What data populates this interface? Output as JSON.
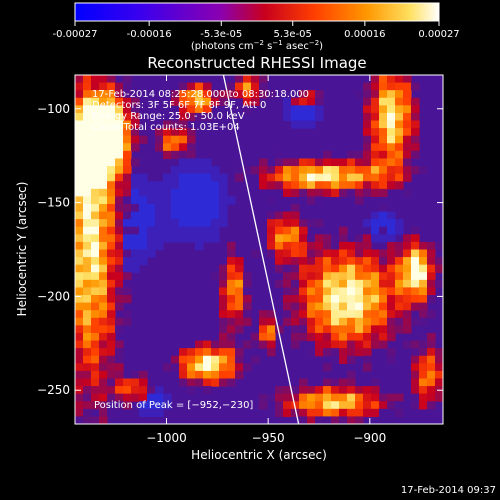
{
  "colorbar": {
    "ticks": [
      "-0.00027",
      "-0.00016",
      "-5.3e-05",
      "5.3e-05",
      "0.00016",
      "0.00027"
    ],
    "tick_values": [
      -0.00027,
      -0.00016,
      -5.3e-05,
      5.3e-05,
      0.00016,
      0.00027
    ],
    "range": [
      -0.00027,
      0.00027
    ],
    "units_prefix": "(photons cm",
    "units_exp1": "−2",
    "units_mid": " s",
    "units_exp2": "−1",
    "units_mid2": " asec",
    "units_exp3": "−2",
    "units_suffix": ")",
    "colormap_stops": [
      "#0000ff",
      "#6a00cc",
      "#c8001e",
      "#ff4000",
      "#ff9600",
      "#ffff9a",
      "#ffffff"
    ]
  },
  "chart_data": {
    "type": "heatmap",
    "title": "Reconstructed RHESSI Image",
    "xlabel": "Heliocentric X (arcsec)",
    "ylabel": "Heliocentric Y (arcsec)",
    "xlim": [
      -1045,
      -864
    ],
    "ylim": [
      -268,
      -82
    ],
    "x_ticks": [
      -1000,
      -950,
      -900
    ],
    "y_ticks": [
      -100,
      -150,
      -200,
      -250
    ],
    "x_tick_labels": [
      "−1000",
      "−950",
      "−900"
    ],
    "y_tick_labels": [
      "−100",
      "−150",
      "−200",
      "−250"
    ],
    "limb_line": [
      [
        -972,
        -82
      ],
      [
        -935,
        -268
      ]
    ],
    "annotations": [
      "17-Feb-2014 08:25:28.000 to 08:30:18.000",
      "Detectors: 3F 5F 6F 7F 8F 9F, Att 0",
      "Energy Range: 25.0 - 50.0 keV",
      "Clean    Total counts: 1.03E+04"
    ],
    "peak_label": "Position of Peak = [−952,−230]",
    "peak_position": [
      -952,
      -230
    ]
  },
  "footer_timestamp": "17-Feb-2014 09:37"
}
